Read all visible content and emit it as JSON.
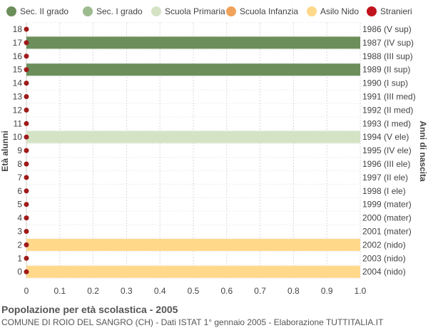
{
  "chart_data": {
    "type": "bar",
    "orientation": "horizontal",
    "title": "Popolazione per età scolastica - 2005",
    "subtitle": "COMUNE DI ROIO DEL SANGRO (CH) - Dati ISTAT 1° gennaio 2005 - Elaborazione TUTTITALIA.IT",
    "ylabel_left": "Età alunni",
    "ylabel_right": "Anni di nascita",
    "xlim": [
      0,
      1.0
    ],
    "x_ticks": [
      "0",
      "0.1",
      "0.2",
      "0.3",
      "0.4",
      "0.5",
      "0.6",
      "0.7",
      "0.8",
      "0.9",
      "1.0"
    ],
    "grid": true,
    "legend_position": "top",
    "legend": [
      {
        "name": "Sec. II grado",
        "color": "#6b8e5a",
        "shape": "circle"
      },
      {
        "name": "Sec. I grado",
        "color": "#9dbb8f",
        "shape": "circle"
      },
      {
        "name": "Scuola Primaria",
        "color": "#d4e3c4",
        "shape": "circle"
      },
      {
        "name": "Scuola Infanzia",
        "color": "#f0a25a",
        "shape": "circle"
      },
      {
        "name": "Asilo Nido",
        "color": "#ffd88a",
        "shape": "circle"
      },
      {
        "name": "Stranieri",
        "color": "#c0141c",
        "shape": "circle"
      }
    ],
    "rows": [
      {
        "age": "18",
        "birth": "1986 (V sup)",
        "value": 0,
        "color": "#6b8e5a",
        "stranieri": 0
      },
      {
        "age": "17",
        "birth": "1987 (IV sup)",
        "value": 1,
        "color": "#6b8e5a",
        "stranieri": 0
      },
      {
        "age": "16",
        "birth": "1988 (III sup)",
        "value": 0,
        "color": "#6b8e5a",
        "stranieri": 0
      },
      {
        "age": "15",
        "birth": "1989 (II sup)",
        "value": 1,
        "color": "#6b8e5a",
        "stranieri": 0
      },
      {
        "age": "14",
        "birth": "1990 (I sup)",
        "value": 0,
        "color": "#6b8e5a",
        "stranieri": 0
      },
      {
        "age": "13",
        "birth": "1991 (III med)",
        "value": 0,
        "color": "#9dbb8f",
        "stranieri": 0
      },
      {
        "age": "12",
        "birth": "1992 (II med)",
        "value": 0,
        "color": "#9dbb8f",
        "stranieri": 0
      },
      {
        "age": "11",
        "birth": "1993 (I med)",
        "value": 0,
        "color": "#9dbb8f",
        "stranieri": 0
      },
      {
        "age": "10",
        "birth": "1994 (V ele)",
        "value": 1,
        "color": "#d4e3c4",
        "stranieri": 0
      },
      {
        "age": "9",
        "birth": "1995 (IV ele)",
        "value": 0,
        "color": "#d4e3c4",
        "stranieri": 0
      },
      {
        "age": "8",
        "birth": "1996 (III ele)",
        "value": 0,
        "color": "#d4e3c4",
        "stranieri": 0
      },
      {
        "age": "7",
        "birth": "1997 (II ele)",
        "value": 0,
        "color": "#d4e3c4",
        "stranieri": 0
      },
      {
        "age": "6",
        "birth": "1998 (I ele)",
        "value": 0,
        "color": "#d4e3c4",
        "stranieri": 0
      },
      {
        "age": "5",
        "birth": "1999 (mater)",
        "value": 0,
        "color": "#f0a25a",
        "stranieri": 0
      },
      {
        "age": "4",
        "birth": "2000 (mater)",
        "value": 0,
        "color": "#f0a25a",
        "stranieri": 0
      },
      {
        "age": "3",
        "birth": "2001 (mater)",
        "value": 0,
        "color": "#f0a25a",
        "stranieri": 0
      },
      {
        "age": "2",
        "birth": "2002 (nido)",
        "value": 1,
        "color": "#ffd88a",
        "stranieri": 0
      },
      {
        "age": "1",
        "birth": "2003 (nido)",
        "value": 0,
        "color": "#ffd88a",
        "stranieri": 0
      },
      {
        "age": "0",
        "birth": "2004 (nido)",
        "value": 1,
        "color": "#ffd88a",
        "stranieri": 0
      }
    ]
  }
}
